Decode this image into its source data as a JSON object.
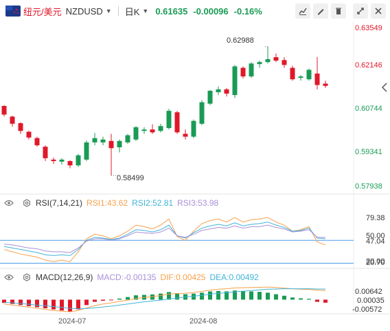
{
  "header": {
    "market_name": "纽元/美元",
    "symbol": "NZDUSD",
    "timeframe": "日K",
    "price": "0.61635",
    "change": "-0.00096",
    "change_pct": "-0.16%",
    "icons": [
      "line-style-icon",
      "pen-icon",
      "delete-icon",
      "fullscreen-icon",
      "close-icon"
    ]
  },
  "price_axis": [
    "0.63549",
    "0.62146",
    "0.60744",
    "0.59341",
    "0.57938"
  ],
  "annotations": {
    "high": "0.62988",
    "low": "0.58499"
  },
  "time_axis": [
    "2024-07",
    "2024-08"
  ],
  "rsi": {
    "title": "RSI(7,14,21)",
    "rsi1_label": "RSI1:43.62",
    "rsi2_label": "RSI2:52.81",
    "rsi3_label": "RSI3:53.98",
    "axis": [
      "79.38",
      "50.00",
      "47.04",
      "20.00",
      "20.70"
    ]
  },
  "macd": {
    "title": "MACD(12,26,9)",
    "macd_label": "MACD:-0.00135",
    "dif_label": "DIF:0.00425",
    "dea_label": "DEA:0.00492",
    "axis": [
      "0.00642",
      "0.00035",
      "-0.00572"
    ]
  },
  "colors": {
    "up": "#1a9b55",
    "down": "#e0182a",
    "rsi1": "#f5a04b",
    "rsi2": "#3fb3d8",
    "rsi3": "#a98fd8",
    "ref": "#4b9be6"
  },
  "chart_data": {
    "type": "candlestick",
    "ylim": [
      0.5785,
      0.6375
    ],
    "candles": [
      {
        "o": 0.6092,
        "h": 0.6095,
        "l": 0.6055,
        "c": 0.6062
      },
      {
        "o": 0.6055,
        "h": 0.6058,
        "l": 0.602,
        "c": 0.603
      },
      {
        "o": 0.6032,
        "h": 0.6035,
        "l": 0.5995,
        "c": 0.6005
      },
      {
        "o": 0.6002,
        "h": 0.6006,
        "l": 0.5975,
        "c": 0.5982
      },
      {
        "o": 0.598,
        "h": 0.5985,
        "l": 0.595,
        "c": 0.5955
      },
      {
        "o": 0.595,
        "h": 0.5955,
        "l": 0.59,
        "c": 0.591
      },
      {
        "o": 0.5905,
        "h": 0.5912,
        "l": 0.589,
        "c": 0.59
      },
      {
        "o": 0.5898,
        "h": 0.591,
        "l": 0.5888,
        "c": 0.5905
      },
      {
        "o": 0.59,
        "h": 0.5903,
        "l": 0.5875,
        "c": 0.5885
      },
      {
        "o": 0.5885,
        "h": 0.5925,
        "l": 0.588,
        "c": 0.592
      },
      {
        "o": 0.5905,
        "h": 0.5972,
        "l": 0.59,
        "c": 0.5965
      },
      {
        "o": 0.5965,
        "h": 0.5998,
        "l": 0.5955,
        "c": 0.598
      },
      {
        "o": 0.5965,
        "h": 0.5985,
        "l": 0.5955,
        "c": 0.5975
      },
      {
        "o": 0.597,
        "h": 0.5995,
        "l": 0.585,
        "c": 0.5945
      },
      {
        "o": 0.5948,
        "h": 0.5975,
        "l": 0.593,
        "c": 0.597
      },
      {
        "o": 0.5965,
        "h": 0.5995,
        "l": 0.596,
        "c": 0.599
      },
      {
        "o": 0.5975,
        "h": 0.6022,
        "l": 0.597,
        "c": 0.6018
      },
      {
        "o": 0.6005,
        "h": 0.6018,
        "l": 0.5995,
        "c": 0.601
      },
      {
        "o": 0.601,
        "h": 0.6028,
        "l": 0.5995,
        "c": 0.6
      },
      {
        "o": 0.6005,
        "h": 0.603,
        "l": 0.6,
        "c": 0.6022
      },
      {
        "o": 0.6015,
        "h": 0.6082,
        "l": 0.601,
        "c": 0.6075
      },
      {
        "o": 0.607,
        "h": 0.6075,
        "l": 0.5995,
        "c": 0.6
      },
      {
        "o": 0.5995,
        "h": 0.601,
        "l": 0.5975,
        "c": 0.5985
      },
      {
        "o": 0.5985,
        "h": 0.6045,
        "l": 0.598,
        "c": 0.604
      },
      {
        "o": 0.603,
        "h": 0.6112,
        "l": 0.6025,
        "c": 0.6105
      },
      {
        "o": 0.61,
        "h": 0.6148,
        "l": 0.6095,
        "c": 0.6145
      },
      {
        "o": 0.614,
        "h": 0.616,
        "l": 0.613,
        "c": 0.615
      },
      {
        "o": 0.615,
        "h": 0.6155,
        "l": 0.6125,
        "c": 0.6135
      },
      {
        "o": 0.613,
        "h": 0.6235,
        "l": 0.612,
        "c": 0.623
      },
      {
        "o": 0.6225,
        "h": 0.623,
        "l": 0.6188,
        "c": 0.6195
      },
      {
        "o": 0.6195,
        "h": 0.6245,
        "l": 0.619,
        "c": 0.624
      },
      {
        "o": 0.6238,
        "h": 0.625,
        "l": 0.6225,
        "c": 0.6245
      },
      {
        "o": 0.6245,
        "h": 0.6299,
        "l": 0.624,
        "c": 0.6255
      },
      {
        "o": 0.6262,
        "h": 0.6275,
        "l": 0.6245,
        "c": 0.625
      },
      {
        "o": 0.6252,
        "h": 0.6262,
        "l": 0.6225,
        "c": 0.6235
      },
      {
        "o": 0.6225,
        "h": 0.6232,
        "l": 0.618,
        "c": 0.6185
      },
      {
        "o": 0.619,
        "h": 0.62,
        "l": 0.618,
        "c": 0.6195
      },
      {
        "o": 0.6185,
        "h": 0.6222,
        "l": 0.618,
        "c": 0.6218
      },
      {
        "o": 0.6205,
        "h": 0.6263,
        "l": 0.615,
        "c": 0.6165
      },
      {
        "o": 0.617,
        "h": 0.618,
        "l": 0.6155,
        "c": 0.6162
      }
    ],
    "rsi1": [
      38,
      35,
      32,
      30,
      28,
      24,
      22,
      24,
      22,
      35,
      52,
      58,
      56,
      52,
      56,
      62,
      70,
      68,
      65,
      70,
      78,
      55,
      50,
      62,
      72,
      76,
      78,
      74,
      80,
      74,
      77,
      78,
      80,
      74,
      70,
      62,
      64,
      68,
      48,
      44
    ],
    "rsi2": [
      42,
      40,
      38,
      36,
      34,
      31,
      30,
      31,
      30,
      38,
      50,
      54,
      53,
      51,
      53,
      58,
      64,
      63,
      61,
      64,
      70,
      56,
      53,
      60,
      66,
      69,
      71,
      69,
      73,
      69,
      71,
      72,
      74,
      70,
      67,
      62,
      63,
      66,
      53,
      52
    ],
    "rsi3": [
      45,
      44,
      42,
      40,
      39,
      36,
      35,
      35,
      34,
      40,
      49,
      52,
      52,
      50,
      52,
      56,
      61,
      60,
      59,
      61,
      66,
      56,
      54,
      58,
      63,
      65,
      67,
      66,
      69,
      66,
      68,
      68,
      70,
      67,
      65,
      61,
      62,
      64,
      54,
      54
    ],
    "macd_hist": [
      -0.0015,
      -0.002,
      -0.0025,
      -0.003,
      -0.0035,
      -0.004,
      -0.0045,
      -0.005,
      -0.0055,
      -0.0045,
      -0.0025,
      -0.001,
      -0.0005,
      -0.0002,
      0.0005,
      0.0012,
      0.002,
      0.0022,
      0.0024,
      0.0028,
      0.0035,
      0.003,
      0.0025,
      0.0028,
      0.0032,
      0.0038,
      0.004,
      0.0038,
      0.0042,
      0.004,
      0.0038,
      0.0036,
      0.0032,
      0.0025,
      0.0018,
      0.001,
      0.0006,
      0.0004,
      -0.001,
      -0.0014
    ],
    "dif": [
      -0.002,
      -0.0025,
      -0.003,
      -0.0035,
      -0.004,
      -0.0045,
      -0.005,
      -0.0053,
      -0.0056,
      -0.005,
      -0.0038,
      -0.0028,
      -0.002,
      -0.0015,
      -0.0008,
      -0.0002,
      0.0005,
      0.001,
      0.0014,
      0.0019,
      0.0026,
      0.0028,
      0.0029,
      0.0033,
      0.0038,
      0.0044,
      0.0048,
      0.005,
      0.0054,
      0.0055,
      0.0056,
      0.0057,
      0.0058,
      0.0056,
      0.0053,
      0.005,
      0.0048,
      0.0047,
      0.0044,
      0.0042
    ],
    "dea": [
      -0.0012,
      -0.0015,
      -0.0018,
      -0.0021,
      -0.0025,
      -0.0028,
      -0.0032,
      -0.0036,
      -0.004,
      -0.0042,
      -0.0041,
      -0.0038,
      -0.0034,
      -0.003,
      -0.0025,
      -0.002,
      -0.0015,
      -0.001,
      -0.0006,
      -0.0002,
      0.0003,
      0.0008,
      0.0012,
      0.0016,
      0.002,
      0.0025,
      0.0029,
      0.0032,
      0.0036,
      0.0039,
      0.0042,
      0.0045,
      0.0048,
      0.0049,
      0.005,
      0.005,
      0.005,
      0.005,
      0.0049,
      0.0049
    ]
  }
}
